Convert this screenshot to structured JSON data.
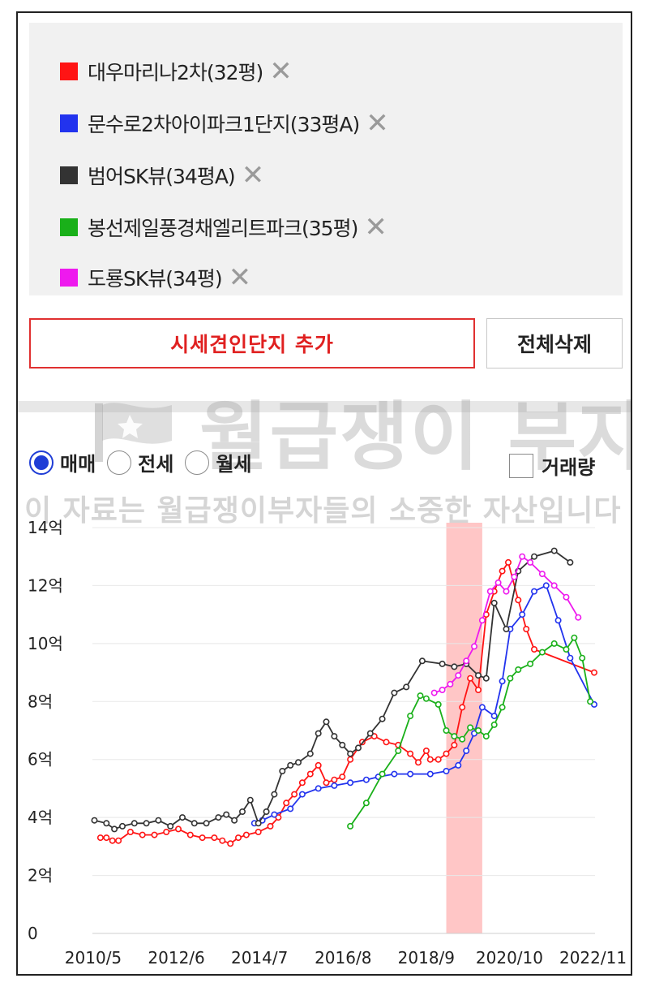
{
  "legend": {
    "items": [
      {
        "label": "대우마리나2차(32평)",
        "color": "#ff1414"
      },
      {
        "label": "문수로2차아이파크1단지(33평A)",
        "color": "#2233ee"
      },
      {
        "label": "범어SK뷰(34평A)",
        "color": "#333333"
      },
      {
        "label": "봉선제일풍경채엘리트파크(35평)",
        "color": "#19b019"
      },
      {
        "label": "도룡SK뷰(34평)",
        "color": "#ee19ee"
      }
    ],
    "remove_symbol": "✕"
  },
  "buttons": {
    "add_label": "시세견인단지 추가",
    "delete_all_label": "전체삭제"
  },
  "tabs": {
    "options": [
      "매매",
      "전세",
      "월세"
    ],
    "selected": "매매",
    "volume_label": "거래량",
    "volume_checked": false
  },
  "watermark": {
    "logo_text": "월급쟁이 부자들",
    "notice": "이 자료는 월급쟁이부자들의 소중한 자산입니다"
  },
  "chart_data": {
    "type": "line",
    "y_unit": "억",
    "ylim": [
      0,
      14
    ],
    "y_ticks": [
      0,
      2,
      4,
      6,
      8,
      10,
      12,
      14
    ],
    "y_tick_labels": [
      "0",
      "2억",
      "4억",
      "6억",
      "8억",
      "10억",
      "12억",
      "14억"
    ],
    "xlim": [
      2010.35,
      2022.92
    ],
    "x_tick_labels": [
      "2010/5",
      "2012/6",
      "2014/7",
      "2016/8",
      "2018/9",
      "2020/10",
      "2022/11"
    ],
    "x_tick_values": [
      2010.37,
      2012.45,
      2014.53,
      2016.62,
      2018.7,
      2020.78,
      2022.87
    ],
    "highlight_band": [
      2019.2,
      2020.1
    ],
    "highlight_color": "#ffb3b3",
    "grid": "horizontal",
    "series": [
      {
        "name": "대우마리나2차(32평)",
        "color": "#ff1414",
        "x": [
          2010.55,
          2010.7,
          2010.85,
          2011.0,
          2011.3,
          2011.6,
          2011.9,
          2012.2,
          2012.5,
          2012.8,
          2013.1,
          2013.4,
          2013.6,
          2013.8,
          2014.0,
          2014.2,
          2014.5,
          2014.8,
          2015.0,
          2015.2,
          2015.4,
          2015.6,
          2015.8,
          2016.0,
          2016.2,
          2016.4,
          2016.6,
          2016.8,
          2017.1,
          2017.4,
          2017.7,
          2018.0,
          2018.3,
          2018.5,
          2018.7,
          2018.8,
          2019.0,
          2019.2,
          2019.4,
          2019.6,
          2019.8,
          2020.0,
          2020.2,
          2020.4,
          2020.6,
          2020.75,
          2021.0,
          2021.2,
          2021.4,
          2022.9
        ],
        "y": [
          3.3,
          3.3,
          3.2,
          3.2,
          3.5,
          3.4,
          3.4,
          3.5,
          3.6,
          3.4,
          3.3,
          3.3,
          3.2,
          3.1,
          3.3,
          3.4,
          3.5,
          3.7,
          4.0,
          4.5,
          4.8,
          5.2,
          5.5,
          5.8,
          5.2,
          5.3,
          5.4,
          6.0,
          6.6,
          6.8,
          6.6,
          6.5,
          6.2,
          5.9,
          6.3,
          6.0,
          6.0,
          6.2,
          6.5,
          7.8,
          8.8,
          8.4,
          11.0,
          11.8,
          12.5,
          12.8,
          11.5,
          10.5,
          9.8,
          9.0
        ]
      },
      {
        "name": "문수로2차아이파크1단지(33평A)",
        "color": "#2233ee",
        "x": [
          2014.4,
          2014.6,
          2014.9,
          2015.3,
          2015.6,
          2016.0,
          2016.4,
          2016.8,
          2017.2,
          2017.5,
          2017.9,
          2018.3,
          2018.8,
          2019.2,
          2019.5,
          2019.7,
          2019.9,
          2020.1,
          2020.4,
          2020.6,
          2020.8,
          2021.1,
          2021.4,
          2021.7,
          2022.0,
          2022.3,
          2022.9
        ],
        "y": [
          3.8,
          3.9,
          4.1,
          4.3,
          4.8,
          5.0,
          5.1,
          5.2,
          5.3,
          5.4,
          5.5,
          5.5,
          5.5,
          5.6,
          5.8,
          6.3,
          6.9,
          7.8,
          7.5,
          8.7,
          10.5,
          11.0,
          11.8,
          12.0,
          10.8,
          9.5,
          7.9
        ]
      },
      {
        "name": "범어SK뷰(34평A)",
        "color": "#333333",
        "x": [
          2010.4,
          2010.7,
          2010.9,
          2011.1,
          2011.4,
          2011.7,
          2012.0,
          2012.3,
          2012.6,
          2012.9,
          2013.2,
          2013.5,
          2013.7,
          2013.9,
          2014.1,
          2014.3,
          2014.5,
          2014.7,
          2014.9,
          2015.1,
          2015.3,
          2015.5,
          2015.8,
          2016.0,
          2016.2,
          2016.4,
          2016.6,
          2016.8,
          2017.0,
          2017.3,
          2017.6,
          2017.9,
          2018.2,
          2018.6,
          2019.1,
          2019.4,
          2019.7,
          2020.0,
          2020.2,
          2020.4,
          2020.7,
          2021.0,
          2021.4,
          2021.9,
          2022.3
        ],
        "y": [
          3.9,
          3.8,
          3.6,
          3.7,
          3.8,
          3.8,
          3.9,
          3.7,
          4.0,
          3.8,
          3.8,
          4.0,
          4.1,
          3.9,
          4.2,
          4.6,
          3.8,
          4.2,
          4.8,
          5.6,
          5.8,
          5.9,
          6.2,
          6.9,
          7.3,
          6.8,
          6.5,
          6.2,
          6.4,
          6.9,
          7.4,
          8.3,
          8.5,
          9.4,
          9.3,
          9.2,
          9.3,
          8.9,
          8.8,
          11.4,
          10.5,
          12.5,
          13.0,
          13.2,
          12.8
        ]
      },
      {
        "name": "봉선제일풍경채엘리트파크(35평)",
        "color": "#19b019",
        "x": [
          2016.8,
          2017.2,
          2017.6,
          2018.0,
          2018.3,
          2018.55,
          2018.7,
          2019.0,
          2019.2,
          2019.4,
          2019.6,
          2019.8,
          2020.0,
          2020.2,
          2020.4,
          2020.6,
          2020.8,
          2021.0,
          2021.3,
          2021.6,
          2021.9,
          2022.2,
          2022.4,
          2022.6,
          2022.8
        ],
        "y": [
          3.7,
          4.5,
          5.5,
          6.3,
          7.5,
          8.2,
          8.1,
          7.9,
          7.0,
          6.8,
          6.7,
          7.1,
          7.0,
          6.8,
          7.2,
          7.8,
          8.8,
          9.1,
          9.3,
          9.7,
          10.0,
          9.8,
          10.2,
          9.5,
          8.0
        ]
      },
      {
        "name": "도룡SK뷰(34평)",
        "color": "#ee19ee",
        "x": [
          2018.9,
          2019.1,
          2019.3,
          2019.5,
          2019.7,
          2019.9,
          2020.1,
          2020.3,
          2020.5,
          2020.7,
          2020.9,
          2021.1,
          2021.3,
          2021.6,
          2021.9,
          2022.2,
          2022.5
        ],
        "y": [
          8.3,
          8.4,
          8.6,
          8.9,
          9.4,
          9.9,
          10.8,
          11.8,
          12.1,
          11.8,
          12.3,
          13.0,
          12.8,
          12.4,
          12.0,
          11.6,
          10.9
        ]
      }
    ]
  }
}
